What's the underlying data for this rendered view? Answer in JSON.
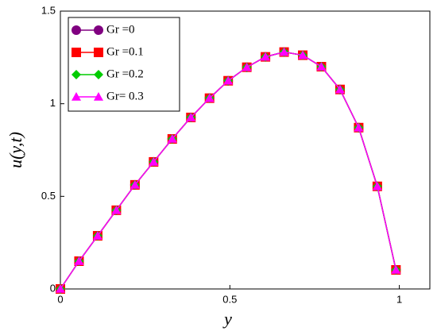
{
  "chart_data": {
    "type": "line",
    "xlabel": "y",
    "ylabel": "u(y,t)",
    "x": [
      0,
      0.055,
      0.11,
      0.165,
      0.22,
      0.275,
      0.33,
      0.385,
      0.44,
      0.495,
      0.55,
      0.605,
      0.66,
      0.715,
      0.77,
      0.825,
      0.88,
      0.935,
      0.99
    ],
    "series": [
      {
        "name": "Gr =0",
        "color": "#800080",
        "marker": "circle",
        "values": [
          0,
          0.15,
          0.287,
          0.425,
          0.562,
          0.686,
          0.81,
          0.926,
          1.03,
          1.124,
          1.197,
          1.253,
          1.279,
          1.262,
          1.2,
          1.077,
          0.871,
          0.554,
          0.103
        ]
      },
      {
        "name": "Gr =0.1",
        "color": "#ff0000",
        "marker": "square",
        "values": [
          0,
          0.15,
          0.287,
          0.425,
          0.562,
          0.686,
          0.81,
          0.926,
          1.03,
          1.124,
          1.197,
          1.253,
          1.279,
          1.262,
          1.2,
          1.077,
          0.871,
          0.554,
          0.103
        ]
      },
      {
        "name": "Gr =0.2",
        "color": "#00cc00",
        "marker": "diamond",
        "values": [
          0,
          0.15,
          0.287,
          0.425,
          0.562,
          0.686,
          0.81,
          0.926,
          1.03,
          1.124,
          1.197,
          1.253,
          1.279,
          1.262,
          1.2,
          1.077,
          0.871,
          0.554,
          0.103
        ]
      },
      {
        "name": "Gr= 0.3",
        "color": "#ff00ff",
        "marker": "triangle",
        "values": [
          0,
          0.15,
          0.287,
          0.425,
          0.562,
          0.686,
          0.81,
          0.926,
          1.03,
          1.124,
          1.197,
          1.253,
          1.279,
          1.262,
          1.2,
          1.077,
          0.871,
          0.554,
          0.103
        ]
      }
    ],
    "xlim": [
      0,
      1.09
    ],
    "xticks": [
      0,
      0.5,
      1
    ],
    "ylim": [
      0,
      1.5
    ],
    "yticks": [
      0,
      0.5,
      1,
      1.5
    ],
    "grid": false,
    "legend": "upper left"
  }
}
